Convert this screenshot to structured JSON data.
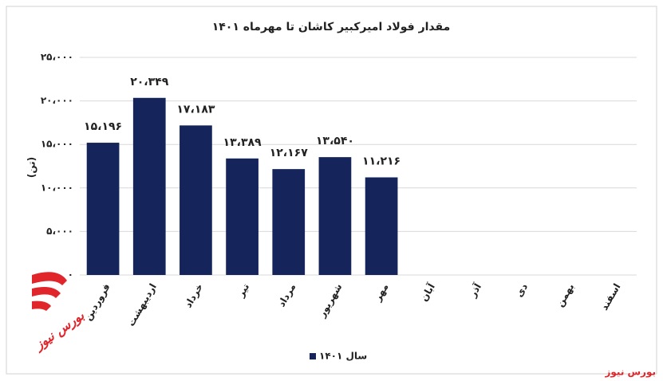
{
  "chart_data": {
    "type": "bar",
    "title": "مقدار فولاد امیرکبیر کاشان تا مهرماه ۱۴۰۱",
    "y_label": "(تن)",
    "categories": [
      "فروردین",
      "اردیبهشت",
      "خرداد",
      "تیر",
      "مرداد",
      "شهریور",
      "مهر",
      "آبان",
      "آذر",
      "دی",
      "بهمن",
      "اسفند"
    ],
    "series": [
      {
        "name": "سال ۱۴۰۱",
        "color": "#15245a",
        "values": [
          15196,
          20349,
          17183,
          13389,
          12167,
          13540,
          11216,
          null,
          null,
          null,
          null,
          null
        ],
        "value_labels": [
          "۱۵،۱۹۶",
          "۲۰،۳۴۹",
          "۱۷،۱۸۳",
          "۱۳،۳۸۹",
          "۱۲،۱۶۷",
          "۱۳،۵۴۰",
          "۱۱،۲۱۶",
          null,
          null,
          null,
          null,
          null
        ]
      }
    ],
    "ylim": [
      0,
      25000
    ],
    "yticks": [
      {
        "value": 0,
        "label": "۰"
      },
      {
        "value": 5000,
        "label": "۵،۰۰۰"
      },
      {
        "value": 10000,
        "label": "۱۰،۰۰۰"
      },
      {
        "value": 15000,
        "label": "۱۵،۰۰۰"
      },
      {
        "value": 20000,
        "label": "۲۰،۰۰۰"
      },
      {
        "value": 25000,
        "label": "۲۵،۰۰۰"
      }
    ],
    "grid": true,
    "legend": "bottom",
    "watermark": "بورس نیوز"
  }
}
